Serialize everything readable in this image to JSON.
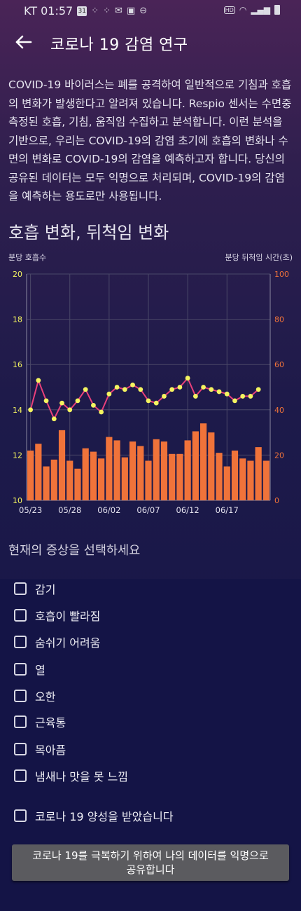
{
  "status_bar": {
    "carrier_time": "KT 01:57",
    "calendar_day": "31"
  },
  "header": {
    "title": "코로나 19 감염 연구"
  },
  "intro_text": "COVID-19 바이러스는 폐를 공격하여 일반적으로 기침과 호흡의 변화가 발생한다고 알려져 있습니다. Respio 센서는 수면중 측정된 호흡, 기침, 움직임 수집하고 분석합니다. 이런 분석을 기반으로, 우리는 COVID-19의 감염 초기에 호흡의 변화나 수면의 변화로 COVID-19의 감염을 예측하고자 합니다. 당신의 공유된 데이터는 모두 익명으로 처리되며, COVID-19의 감염을 예측하는 용도로만 사용됩니다.",
  "section_title": "호흡 변화, 뒤척임 변화",
  "chart_data": {
    "type": "bar",
    "ylabel_left": "분당 호흡수",
    "ylabel_right": "분당 뒤척임 시간(초)",
    "ylim_left": [
      10,
      20
    ],
    "ylim_right": [
      0,
      100
    ],
    "yticks_left": [
      "10",
      "12",
      "14",
      "16",
      "18",
      "20"
    ],
    "yticks_right": [
      "0",
      "20",
      "40",
      "60",
      "80",
      "100"
    ],
    "xtick_labels": [
      {
        "index": 0,
        "label": "05/23"
      },
      {
        "index": 5,
        "label": "05/28"
      },
      {
        "index": 10,
        "label": "06/02"
      },
      {
        "index": 15,
        "label": "06/07"
      },
      {
        "index": 20,
        "label": "06/12"
      },
      {
        "index": 25,
        "label": "06/17"
      }
    ],
    "grid": true,
    "series": [
      {
        "type": "bar",
        "axis": "right",
        "color": "#f0733a",
        "values": [
          22,
          25,
          15,
          18,
          31,
          17.5,
          14,
          23,
          21.5,
          18.5,
          28,
          26.5,
          19,
          26,
          24,
          17.5,
          27,
          26,
          20.5,
          20.5,
          26.5,
          30.5,
          34,
          30,
          21,
          15,
          22,
          18.5,
          17.5,
          23.5,
          17.5
        ]
      },
      {
        "type": "line",
        "axis": "left",
        "color": "#e8407a",
        "marker_color": "#f4f460",
        "values": [
          14.0,
          15.3,
          14.4,
          13.6,
          14.3,
          14.0,
          14.4,
          14.9,
          14.2,
          13.9,
          14.7,
          15.0,
          14.9,
          15.1,
          14.9,
          14.4,
          14.3,
          14.6,
          14.9,
          15.0,
          15.4,
          14.6,
          15.0,
          14.9,
          14.8,
          14.7,
          14.4,
          14.6,
          14.6,
          14.9
        ]
      }
    ]
  },
  "symptoms": {
    "title": "현재의 증상을 선택하세요",
    "items": [
      "감기",
      "호흡이 빨라짐",
      "숨쉬기 어려움",
      "열",
      "오한",
      "근육통",
      "목아픔",
      "냄새나 맛을 못 느낌"
    ],
    "positive_label": "코로나 19 양성을 받았습니다"
  },
  "share_button": "코로나 19를 극복하기 위하여 나의 데이터를 익명으로 공유합니다"
}
